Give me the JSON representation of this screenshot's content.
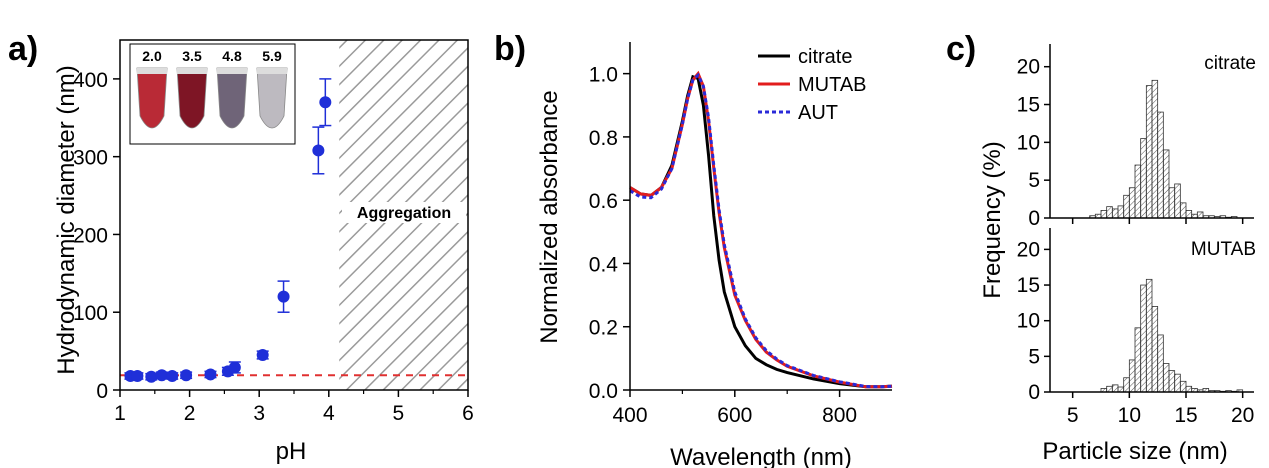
{
  "panel_letters": {
    "a": "a)",
    "b": "b)",
    "c": "c)"
  },
  "chart_data": [
    {
      "type": "scatter",
      "panel": "a)",
      "xlabel": "pH",
      "ylabel": "Hydrodynamic diameter (nm)",
      "xlim": [
        1,
        6
      ],
      "ylim": [
        0,
        450
      ],
      "xticks": [
        1,
        2,
        3,
        4,
        5,
        6
      ],
      "yticks": [
        0,
        100,
        200,
        300,
        400
      ],
      "grid": false,
      "points": [
        {
          "x": 1.15,
          "y": 18,
          "err": 4
        },
        {
          "x": 1.25,
          "y": 18,
          "err": 4
        },
        {
          "x": 1.45,
          "y": 17,
          "err": 4
        },
        {
          "x": 1.6,
          "y": 19,
          "err": 4
        },
        {
          "x": 1.75,
          "y": 18,
          "err": 4
        },
        {
          "x": 1.95,
          "y": 19,
          "err": 4
        },
        {
          "x": 2.3,
          "y": 20,
          "err": 4
        },
        {
          "x": 2.55,
          "y": 24,
          "err": 5
        },
        {
          "x": 2.65,
          "y": 29,
          "err": 7
        },
        {
          "x": 3.05,
          "y": 45,
          "err": 5
        },
        {
          "x": 3.35,
          "y": 120,
          "err": 20
        },
        {
          "x": 3.85,
          "y": 308,
          "err": 30
        },
        {
          "x": 3.95,
          "y": 370,
          "err": 30
        }
      ],
      "reference_line": {
        "y": 19,
        "color": "#e03030",
        "style": "dashed"
      },
      "aggregation_region": {
        "x_from": 4.15,
        "x_to": 6,
        "label": "Aggregation"
      },
      "inset_vials": [
        {
          "label": "2.0",
          "color": "#b92a36"
        },
        {
          "label": "3.5",
          "color": "#7e1525"
        },
        {
          "label": "4.8",
          "color": "#6f6478"
        },
        {
          "label": "5.9",
          "color": "#bdbac0"
        }
      ],
      "marker_color": "#1f2fd8"
    },
    {
      "type": "line",
      "panel": "b)",
      "xlabel": "Wavelength (nm)",
      "ylabel": "Normalized absorbance",
      "xlim": [
        400,
        900
      ],
      "ylim": [
        0,
        1.1
      ],
      "xticks": [
        400,
        600,
        800
      ],
      "yticks": [
        0.0,
        0.2,
        0.4,
        0.6,
        0.8,
        1.0
      ],
      "legend_position": "top-right",
      "grid": false,
      "series": [
        {
          "name": "citrate",
          "color": "#000000",
          "style": "solid",
          "x": [
            400,
            420,
            440,
            460,
            480,
            500,
            510,
            520,
            530,
            540,
            550,
            560,
            570,
            580,
            600,
            620,
            640,
            660,
            680,
            700,
            750,
            800,
            850,
            880,
            900
          ],
          "y": [
            0.64,
            0.62,
            0.615,
            0.64,
            0.71,
            0.85,
            0.93,
            0.99,
            0.985,
            0.9,
            0.74,
            0.55,
            0.41,
            0.31,
            0.2,
            0.14,
            0.1,
            0.08,
            0.065,
            0.055,
            0.035,
            0.02,
            0.01,
            0.01,
            0.012
          ]
        },
        {
          "name": "MUTAB",
          "color": "#e21d1d",
          "style": "solid",
          "x": [
            400,
            420,
            440,
            460,
            480,
            500,
            510,
            520,
            530,
            540,
            550,
            560,
            570,
            580,
            600,
            620,
            640,
            660,
            680,
            700,
            750,
            800,
            850,
            880,
            900
          ],
          "y": [
            0.64,
            0.62,
            0.615,
            0.64,
            0.7,
            0.84,
            0.92,
            0.98,
            1.0,
            0.96,
            0.85,
            0.7,
            0.56,
            0.45,
            0.3,
            0.22,
            0.16,
            0.12,
            0.095,
            0.075,
            0.045,
            0.025,
            0.01,
            0.01,
            0.012
          ]
        },
        {
          "name": "AUT",
          "color": "#2a2ad8",
          "style": "dotted",
          "x": [
            400,
            420,
            440,
            460,
            480,
            500,
            510,
            520,
            530,
            540,
            550,
            560,
            570,
            580,
            600,
            620,
            640,
            660,
            680,
            700,
            750,
            800,
            850,
            880,
            900
          ],
          "y": [
            0.63,
            0.61,
            0.608,
            0.635,
            0.7,
            0.84,
            0.92,
            0.98,
            0.995,
            0.96,
            0.86,
            0.71,
            0.57,
            0.46,
            0.31,
            0.225,
            0.165,
            0.125,
            0.098,
            0.077,
            0.046,
            0.026,
            0.011,
            0.01,
            0.012
          ]
        }
      ]
    },
    {
      "type": "bar",
      "panel": "c)",
      "xlabel": "Particle size (nm)",
      "ylabel": "Frequency (%)",
      "xlim": [
        3,
        21
      ],
      "xticks": [
        5,
        10,
        15,
        20
      ],
      "grid": false,
      "subplots": [
        {
          "label": "citrate",
          "ylim": [
            0,
            23
          ],
          "yticks": [
            0,
            5,
            10,
            15,
            20
          ],
          "bin_width": 0.5,
          "bin_starts": [
            6.5,
            7.0,
            7.5,
            8.0,
            8.5,
            9.0,
            9.5,
            10.0,
            10.5,
            11.0,
            11.5,
            12.0,
            12.5,
            13.0,
            13.5,
            14.0,
            14.5,
            15.0,
            15.5,
            16.0,
            16.5,
            17.0,
            17.5,
            18.0,
            18.5,
            19.0
          ],
          "values": [
            0.3,
            0.5,
            1.0,
            1.5,
            1.2,
            1.6,
            3.0,
            4.0,
            7.0,
            10.5,
            17.5,
            18.2,
            14.0,
            9.0,
            4.0,
            4.5,
            2.0,
            1.0,
            0.5,
            0.8,
            0.3,
            0.3,
            0.2,
            0.3,
            0.1,
            0.2
          ]
        },
        {
          "label": "MUTAB",
          "ylim": [
            0,
            23
          ],
          "yticks": [
            0,
            5,
            10,
            15,
            20
          ],
          "bin_width": 0.5,
          "bin_starts": [
            7.5,
            8.0,
            8.5,
            9.0,
            9.5,
            10.0,
            10.5,
            11.0,
            11.5,
            12.0,
            12.5,
            13.0,
            13.5,
            14.0,
            14.5,
            15.0,
            15.5,
            16.0,
            16.5,
            17.0,
            17.5,
            18.0,
            18.5,
            19.0,
            19.5
          ],
          "values": [
            0.5,
            0.8,
            1.0,
            0.7,
            2.0,
            4.5,
            9.0,
            15.0,
            15.8,
            12.0,
            8.0,
            4.0,
            3.0,
            2.5,
            1.5,
            0.8,
            0.5,
            0.3,
            0.5,
            0.2,
            0.2,
            0.1,
            0.2,
            0.1,
            0.3
          ]
        }
      ]
    }
  ]
}
